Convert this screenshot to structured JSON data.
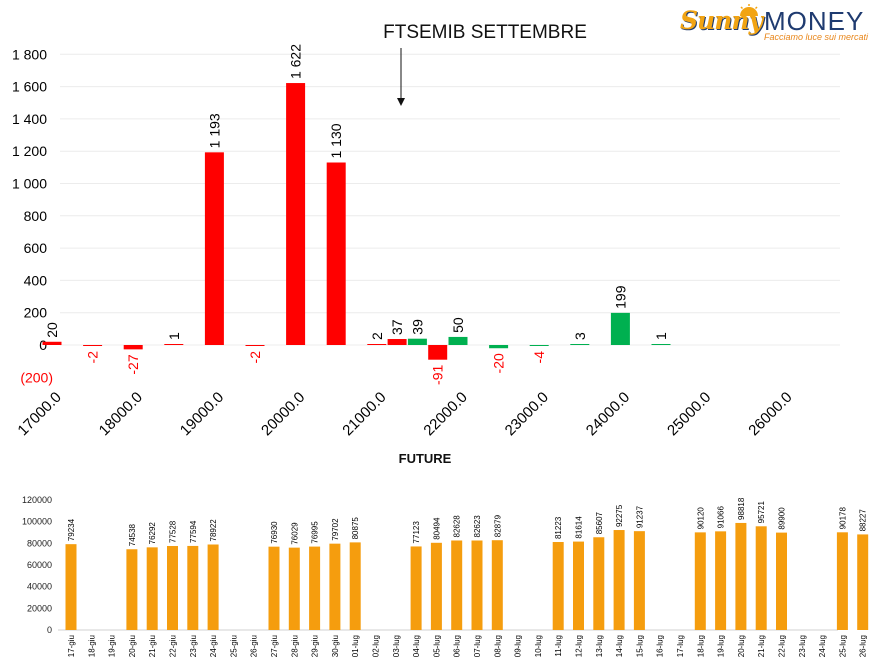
{
  "logo": {
    "brand_part1": "Sunny",
    "brand_part2": "MONEY",
    "tagline": "Facciamo luce sui mercati"
  },
  "chart_data": [
    {
      "type": "bar",
      "title": "FTSEMIB SETTEMBRE",
      "x": [
        17000,
        17500,
        18000,
        18500,
        19000,
        19500,
        20000,
        20500,
        21000,
        21250,
        21500,
        21750,
        22000,
        22500,
        23000,
        23500,
        24000,
        24500
      ],
      "x_tick_labels": [
        "17000.0",
        "18000.0",
        "19000.0",
        "20000.0",
        "21000.0",
        "22000.0",
        "23000.0",
        "24000.0",
        "25000.0",
        "26000.0"
      ],
      "xlim": [
        17000,
        26000
      ],
      "values": [
        20,
        -2,
        -27,
        1,
        1193,
        -2,
        1622,
        1130,
        2,
        37,
        39,
        -91,
        50,
        -20,
        -4,
        3,
        199,
        1
      ],
      "value_labels": [
        "20",
        "-2",
        "-27",
        "1",
        "1 193",
        "-2",
        "1 622",
        "1 130",
        "2",
        "37",
        "39",
        "-91",
        "50",
        "-20",
        "-4",
        "3",
        "199",
        "1"
      ],
      "bar_colors": [
        "#ff0000",
        "#ff0000",
        "#ff0000",
        "#ff0000",
        "#ff0000",
        "#ff0000",
        "#ff0000",
        "#ff0000",
        "#ff0000",
        "#ff0000",
        "#00b050",
        "#ff0000",
        "#00b050",
        "#00b050",
        "#00b050",
        "#00b050",
        "#00b050",
        "#00b050"
      ],
      "ylim": [
        -200,
        1800
      ],
      "y_ticks": [
        -200,
        0,
        200,
        400,
        600,
        800,
        1000,
        1200,
        1400,
        1600,
        1800
      ],
      "y_tick_labels": [
        "(200)",
        "0",
        "200",
        "400",
        "600",
        "800",
        "1 000",
        "1 200",
        "1 400",
        "1 600",
        "1 800"
      ],
      "negative_color": "#ff0000",
      "positive_label_color": "#000000",
      "grid": true,
      "annotation": "arrow pointing down below the title"
    },
    {
      "type": "bar",
      "title": "FUTURE",
      "categories": [
        "17-giu",
        "18-giu",
        "19-giu",
        "20-giu",
        "21-giu",
        "22-giu",
        "23-giu",
        "24-giu",
        "25-giu",
        "26-giu",
        "27-giu",
        "28-giu",
        "29-giu",
        "30-giu",
        "01-lug",
        "02-lug",
        "03-lug",
        "04-lug",
        "05-lug",
        "06-lug",
        "07-lug",
        "08-lug",
        "09-lug",
        "10-lug",
        "11-lug",
        "12-lug",
        "13-lug",
        "14-lug",
        "15-lug",
        "16-lug",
        "17-lug",
        "18-lug",
        "19-lug",
        "20-lug",
        "21-lug",
        "22-lug",
        "23-lug",
        "24-lug",
        "25-lug",
        "26-lug"
      ],
      "values": [
        79234,
        null,
        null,
        74538,
        76292,
        77528,
        77594,
        78922,
        null,
        null,
        76930,
        76029,
        76995,
        79702,
        80875,
        null,
        null,
        77123,
        80494,
        82628,
        82623,
        82879,
        null,
        null,
        81223,
        81614,
        85607,
        92275,
        91237,
        null,
        null,
        90120,
        91066,
        98818,
        95721,
        89900,
        null,
        null,
        90178,
        88227
      ],
      "ylim": [
        0,
        120000
      ],
      "y_ticks": [
        0,
        20000,
        40000,
        60000,
        80000,
        100000,
        120000
      ],
      "y_tick_labels": [
        "0",
        "20000",
        "40000",
        "60000",
        "80000",
        "100000",
        "120000"
      ],
      "bar_color": "#f59d0e",
      "grid": false
    }
  ]
}
